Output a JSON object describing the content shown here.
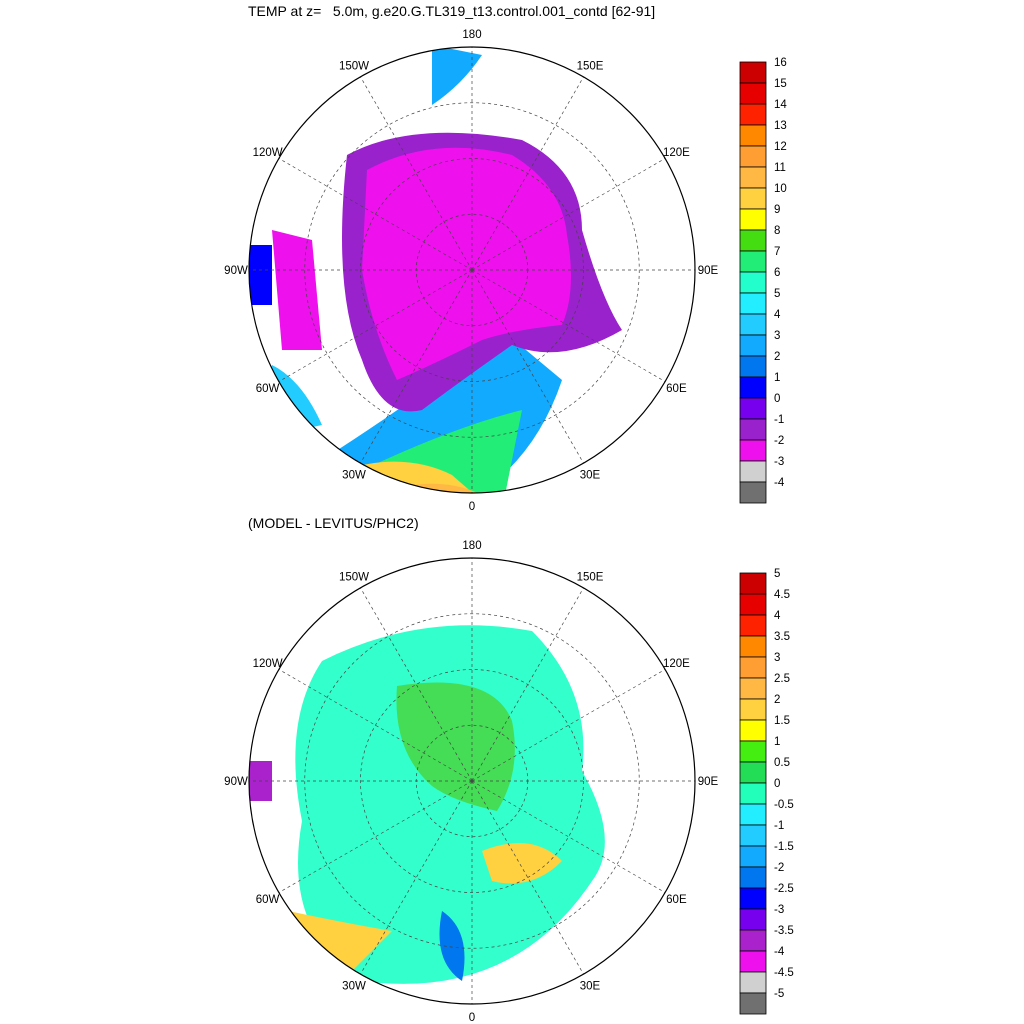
{
  "panels": [
    {
      "title": "TEMP at z=   5.0m, g.e20.G.TL319_t13.control.001_contd [62-91]",
      "longitude_labels": [
        "180",
        "150W",
        "150E",
        "120W",
        "120E",
        "90W",
        "90E",
        "60W",
        "60E",
        "30W",
        "30E",
        "0"
      ],
      "colorbar_labels": [
        "16",
        "15",
        "14",
        "13",
        "12",
        "11",
        "10",
        "9",
        "8",
        "7",
        "6",
        "5",
        "4",
        "3",
        "2",
        "1",
        "0",
        "-1",
        "-2",
        "-3",
        "-4"
      ],
      "colorbar_colors": [
        "#cc0000",
        "#e60000",
        "#ff2200",
        "#ff8800",
        "#ff9f33",
        "#ffb844",
        "#ffd040",
        "#ffff00",
        "#44dd11",
        "#22ee77",
        "#22ffcc",
        "#22eeff",
        "#22ccff",
        "#11aaff",
        "#0077ee",
        "#0000ff",
        "#7700ee",
        "#9922cc",
        "#ee11ee",
        "#d0d0d0",
        "#707070"
      ]
    },
    {
      "title": "(MODEL - LEVITUS/PHC2)",
      "longitude_labels": [
        "180",
        "150W",
        "150E",
        "120W",
        "120E",
        "90W",
        "90E",
        "60W",
        "60E",
        "30W",
        "30E",
        "0"
      ],
      "colorbar_labels": [
        "5",
        "4.5",
        "4",
        "3.5",
        "3",
        "2.5",
        "2",
        "1.5",
        "1",
        "0.5",
        "0",
        "-0.5",
        "-1",
        "-1.5",
        "-2",
        "-2.5",
        "-3",
        "-3.5",
        "-4",
        "-4.5",
        "-5"
      ],
      "colorbar_colors": [
        "#cc0000",
        "#e60000",
        "#ff2200",
        "#ff8800",
        "#ff9f33",
        "#ffb844",
        "#ffd040",
        "#ffff00",
        "#44ee11",
        "#22dd55",
        "#22ffbb",
        "#22eeff",
        "#22ccff",
        "#11aaff",
        "#0077ee",
        "#0000ff",
        "#7700ee",
        "#aa22cc",
        "#ee11ee",
        "#d0d0d0",
        "#707070"
      ]
    }
  ],
  "palette": {
    "land": "#ffffff",
    "ice_core": "#ee11ee",
    "cold_ring": "#9922cc",
    "anomaly_base": "#33ffcc",
    "anomaly_positive": "#44dd55",
    "warm_atlantic": "#ffd040",
    "warm_atlantic_hot": "#ffb844"
  }
}
